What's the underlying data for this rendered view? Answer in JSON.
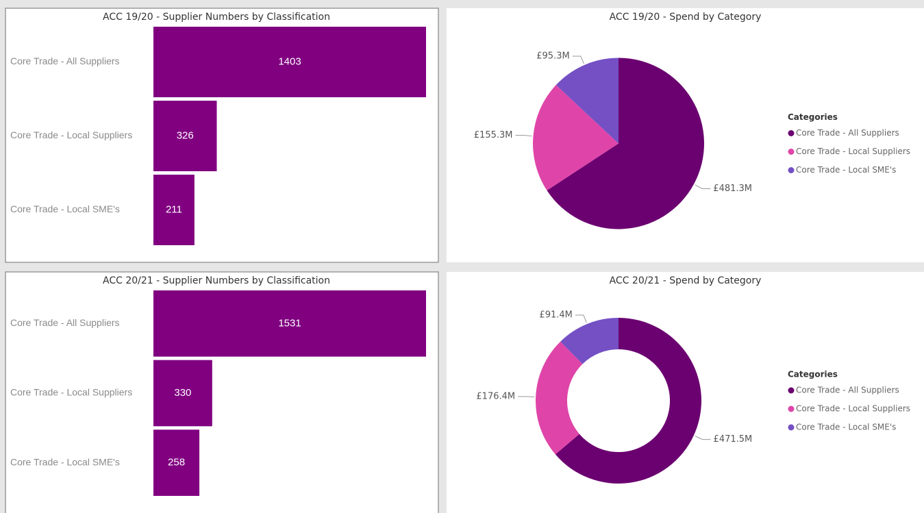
{
  "chart_data": [
    {
      "type": "bar",
      "orientation": "horizontal",
      "title": "ACC 19/20 - Supplier Numbers by Classification",
      "categories": [
        "Core Trade - All Suppliers",
        "Core Trade - Local Suppliers",
        "Core Trade - Local SME's"
      ],
      "values": [
        1403,
        326,
        211
      ],
      "color": "#800080"
    },
    {
      "type": "pie",
      "title": "ACC 19/20 - Spend by Category",
      "legend_title": "Categories",
      "categories": [
        "Core Trade - All Suppliers",
        "Core Trade - Local Suppliers",
        "Core Trade - Local SME's"
      ],
      "values": [
        481.3,
        155.3,
        95.3
      ],
      "value_labels": [
        "£481.3M",
        "£155.3M",
        "£95.3M"
      ],
      "colors": [
        "#6b0070",
        "#df45a8",
        "#7450c4"
      ],
      "legend": "right"
    },
    {
      "type": "bar",
      "orientation": "horizontal",
      "title": "ACC 20/21 - Supplier Numbers by Classification",
      "categories": [
        "Core Trade - All Suppliers",
        "Core Trade - Local Suppliers",
        "Core Trade - Local SME's"
      ],
      "values": [
        1531,
        330,
        258
      ],
      "color": "#800080"
    },
    {
      "type": "donut",
      "title": "ACC 20/21 - Spend by Category",
      "legend_title": "Categories",
      "categories": [
        "Core Trade - All Suppliers",
        "Core Trade - Local Suppliers",
        "Core Trade - Local SME's"
      ],
      "values": [
        471.5,
        176.4,
        91.4
      ],
      "value_labels": [
        "£471.5M",
        "£176.4M",
        "£91.4M"
      ],
      "colors": [
        "#6b0070",
        "#df45a8",
        "#7450c4"
      ],
      "legend": "right"
    }
  ]
}
